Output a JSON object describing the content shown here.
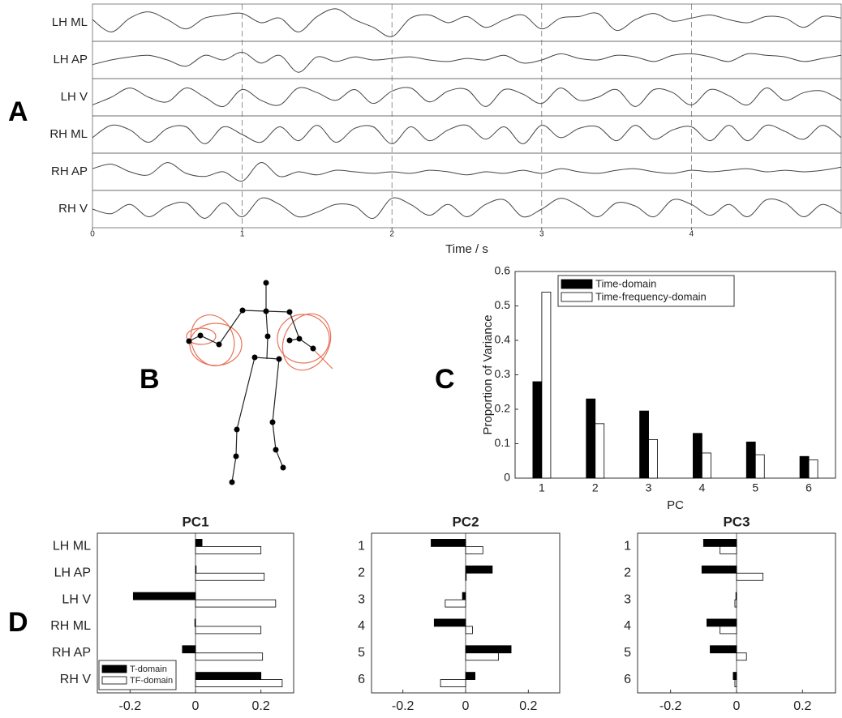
{
  "panel_labels": [
    "A",
    "B",
    "C",
    "D"
  ],
  "chart_data": [
    {
      "type": "line",
      "xlabel": "Time / s",
      "xlim": [
        0,
        5
      ],
      "xticks": [
        0,
        1,
        2,
        3,
        4
      ],
      "grid": true,
      "ylim": [
        -1,
        1
      ],
      "x": [
        0,
        0.125,
        0.25,
        0.375,
        0.5,
        0.625,
        0.75,
        0.875,
        1,
        1.125,
        1.25,
        1.375,
        1.5,
        1.625,
        1.75,
        1.875,
        2,
        2.125,
        2.25,
        2.375,
        2.5,
        2.625,
        2.75,
        2.875,
        3,
        3.125,
        3.25,
        3.375,
        3.5,
        3.625,
        3.75,
        3.875,
        4,
        4.125,
        4.25,
        4.375,
        4.5,
        4.625,
        4.75,
        4.875,
        5
      ],
      "series": [
        {
          "name": "LH ML",
          "color": "#444444",
          "values": [
            0.2,
            -0.6,
            0.3,
            0.7,
            0.2,
            -0.4,
            0.3,
            0.5,
            0.6,
            0.0,
            0.3,
            -0.6,
            0.4,
            0.9,
            0.2,
            -0.3,
            -0.9,
            0.3,
            0.5,
            0.0,
            0.4,
            -0.3,
            0.2,
            0.5,
            -0.4,
            0.3,
            0.4,
            0.6,
            -0.5,
            0.2,
            0.6,
            0.1,
            0.3,
            0.5,
            0.2,
            0.0,
            0.4,
            0.3,
            -0.3,
            0.4,
            0.3
          ]
        },
        {
          "name": "LH AP",
          "color": "#444444",
          "values": [
            -0.3,
            0.0,
            0.2,
            0.3,
            0.0,
            -0.4,
            0.3,
            0.0,
            0.5,
            -0.2,
            0.3,
            -0.8,
            0.2,
            -0.1,
            0.2,
            0.0,
            0.1,
            0.2,
            0.0,
            -0.1,
            0.1,
            0.0,
            0.3,
            -0.2,
            0.0,
            0.4,
            0.1,
            0.0,
            0.3,
            0.2,
            -0.1,
            0.3,
            0.4,
            0.2,
            -0.1,
            0.4,
            0.3,
            0.2,
            -0.1,
            0.1,
            0.3
          ]
        },
        {
          "name": "LH V",
          "color": "#444444",
          "values": [
            -0.5,
            0.0,
            0.6,
            0.0,
            -0.3,
            0.6,
            0.0,
            -0.6,
            0.5,
            -0.2,
            -0.5,
            0.6,
            0.3,
            -0.2,
            0.5,
            -0.4,
            0.4,
            0.6,
            -0.3,
            0.4,
            0.5,
            -0.6,
            0.5,
            0.2,
            -0.4,
            0.6,
            -0.2,
            0.0,
            0.5,
            -0.6,
            0.5,
            0.3,
            -0.5,
            0.5,
            0.1,
            -0.5,
            0.6,
            -0.2,
            0.3,
            0.4,
            -0.2
          ]
        },
        {
          "name": "RH ML",
          "color": "#444444",
          "values": [
            -0.2,
            0.6,
            0.3,
            -0.5,
            0.4,
            0.5,
            -0.6,
            0.5,
            0.0,
            -0.5,
            0.5,
            -0.4,
            0.6,
            -0.5,
            0.4,
            0.5,
            -0.6,
            0.5,
            -0.4,
            0.3,
            0.6,
            -0.3,
            0.5,
            -0.6,
            0.6,
            -0.2,
            0.4,
            0.5,
            -0.4,
            0.6,
            -0.3,
            0.3,
            0.5,
            -0.4,
            0.6,
            -0.4,
            0.6,
            0.2,
            -0.3,
            0.6,
            -0.2
          ]
        },
        {
          "name": "RH AP",
          "color": "#444444",
          "values": [
            0.2,
            0.5,
            0.0,
            -0.2,
            0.6,
            -0.1,
            -0.3,
            0.0,
            -0.6,
            0.6,
            -0.3,
            0.0,
            -0.2,
            0.1,
            0.0,
            -0.1,
            0.0,
            -0.1,
            0.1,
            0.0,
            -0.2,
            0.0,
            -0.1,
            0.1,
            -0.1,
            0.2,
            0.0,
            -0.1,
            0.1,
            0.2,
            0.0,
            -0.1,
            0.1,
            0.0,
            0.1,
            0.2,
            0.0,
            0.1,
            0.0,
            0.1,
            0.3
          ]
        },
        {
          "name": "RH V",
          "color": "#444444",
          "values": [
            0.0,
            -0.3,
            0.3,
            -0.5,
            0.2,
            0.4,
            -0.6,
            0.4,
            -0.5,
            0.7,
            0.3,
            -0.5,
            -0.2,
            0.3,
            0.2,
            -0.6,
            0.7,
            0.3,
            -0.4,
            0.3,
            -0.5,
            0.3,
            0.6,
            -0.5,
            0.0,
            0.7,
            0.2,
            -0.5,
            0.4,
            0.2,
            -0.5,
            0.6,
            0.3,
            -0.4,
            0.3,
            -0.5,
            0.6,
            0.4,
            -0.5,
            0.3,
            -0.3
          ]
        }
      ]
    },
    {
      "type": "bar",
      "ylabel": "Proportion of Variance",
      "xlabel": "PC",
      "categories": [
        "1",
        "2",
        "3",
        "4",
        "5",
        "6"
      ],
      "ylim": [
        0,
        0.6
      ],
      "yticks": [
        0,
        0.1,
        0.2,
        0.3,
        0.4,
        0.5,
        0.6
      ],
      "legend": "upper right",
      "series": [
        {
          "name": "Time-domain",
          "color": "#000000",
          "values": [
            0.28,
            0.23,
            0.195,
            0.13,
            0.105,
            0.063
          ]
        },
        {
          "name": "Time-frequency-domain",
          "color": "#ffffff",
          "values": [
            0.54,
            0.158,
            0.112,
            0.073,
            0.068,
            0.053
          ]
        }
      ]
    },
    {
      "type": "barh",
      "title": "PC1",
      "categories": [
        "LH ML",
        "LH AP",
        "LH V",
        "RH ML",
        "RH AP",
        "RH V"
      ],
      "xlim": [
        -0.3,
        0.3
      ],
      "xticks": [
        -0.2,
        0,
        0.2
      ],
      "legend": "lower left",
      "series": [
        {
          "name": "T-domain",
          "color": "#000000",
          "values": [
            0.02,
            0.002,
            -0.19,
            -0.002,
            -0.04,
            0.2
          ]
        },
        {
          "name": "TF-domain",
          "color": "#ffffff",
          "values": [
            0.2,
            0.21,
            0.245,
            0.2,
            0.205,
            0.265
          ]
        }
      ]
    },
    {
      "type": "barh",
      "title": "PC2",
      "categories": [
        "1",
        "2",
        "3",
        "4",
        "5",
        "6"
      ],
      "xlim": [
        -0.3,
        0.3
      ],
      "xticks": [
        -0.2,
        0,
        0.2
      ],
      "series": [
        {
          "color": "#000000",
          "values": [
            -0.11,
            0.085,
            -0.01,
            -0.1,
            0.145,
            0.03
          ]
        },
        {
          "color": "#ffffff",
          "values": [
            0.055,
            0.002,
            -0.065,
            0.022,
            0.105,
            -0.08
          ]
        }
      ]
    },
    {
      "type": "barh",
      "title": "PC3",
      "categories": [
        "1",
        "2",
        "3",
        "4",
        "5",
        "6"
      ],
      "xlim": [
        -0.3,
        0.3
      ],
      "xticks": [
        -0.2,
        0,
        0.2
      ],
      "series": [
        {
          "color": "#000000",
          "values": [
            -0.1,
            -0.105,
            -0.002,
            -0.09,
            -0.08,
            -0.01
          ]
        },
        {
          "color": "#ffffff",
          "values": [
            -0.05,
            0.08,
            -0.005,
            -0.05,
            0.03,
            -0.005
          ]
        }
      ]
    }
  ]
}
